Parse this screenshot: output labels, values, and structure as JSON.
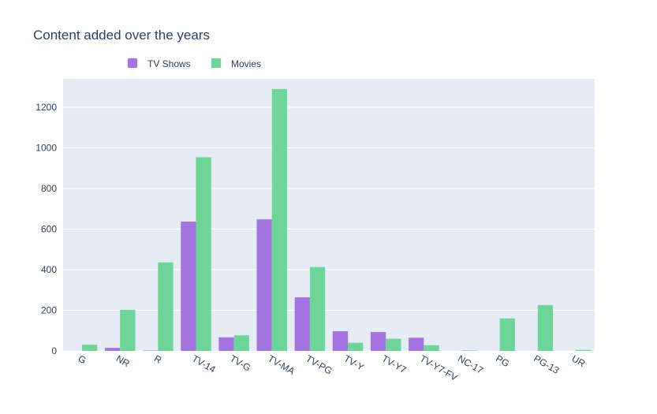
{
  "chart_data": {
    "type": "bar",
    "title": "Content added over the years",
    "xlabel": "",
    "ylabel": "",
    "categories": [
      "G",
      "NR",
      "R",
      "TV-14",
      "TV-G",
      "TV-MA",
      "TV-PG",
      "TV-Y",
      "TV-Y7",
      "TV-Y7-FV",
      "NC-17",
      "PG",
      "PG-13",
      "UR"
    ],
    "series": [
      {
        "name": "TV Shows",
        "color": "#a474e0",
        "values": [
          0,
          15,
          2,
          637,
          67,
          648,
          264,
          97,
          93,
          65,
          0,
          0,
          0,
          0
        ]
      },
      {
        "name": "Movies",
        "color": "#6cd597",
        "values": [
          30,
          202,
          436,
          954,
          77,
          1290,
          413,
          40,
          60,
          28,
          2,
          160,
          226,
          5
        ]
      }
    ],
    "ylim": [
      0,
      1340
    ],
    "yticks": [
      "0",
      "200",
      "400",
      "600",
      "800",
      "1000",
      "1200"
    ],
    "legend_position": "top",
    "grid": true,
    "plot_background": "#e5ecf6"
  }
}
